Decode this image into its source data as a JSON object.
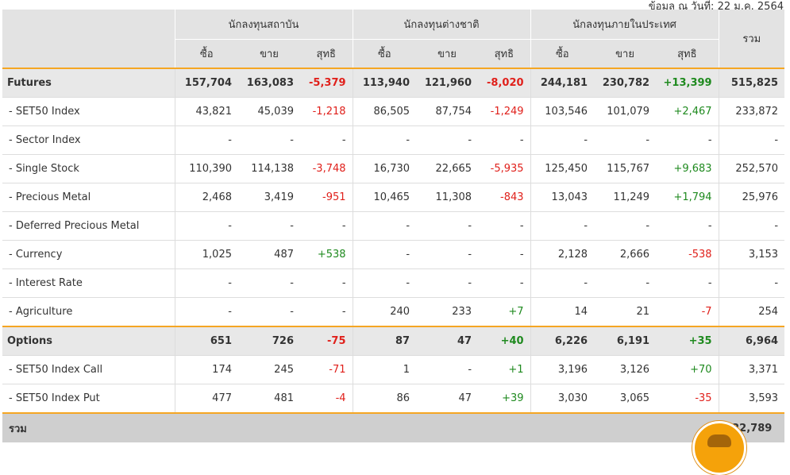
{
  "date_note": "ข้อมูล ณ วันที่: 22 ม.ค. 2564",
  "header": {
    "groups": [
      "นักลงทุนสถาบัน",
      "นักลงทุนต่างชาติ",
      "นักลงทุนภายในประเทศ"
    ],
    "total": "รวม",
    "sub": [
      "ซื้อ",
      "ขาย",
      "สุทธิ"
    ]
  },
  "rows": [
    {
      "type": "main",
      "name": "Futures",
      "v": [
        "157,704",
        "163,083",
        "-5,379",
        "113,940",
        "121,960",
        "-8,020",
        "244,181",
        "230,782",
        "+13,399"
      ],
      "total": "515,825"
    },
    {
      "type": "sub",
      "name": "- SET50 Index",
      "v": [
        "43,821",
        "45,039",
        "-1,218",
        "86,505",
        "87,754",
        "-1,249",
        "103,546",
        "101,079",
        "+2,467"
      ],
      "total": "233,872"
    },
    {
      "type": "sub",
      "name": "- Sector Index",
      "v": [
        "-",
        "-",
        "-",
        "-",
        "-",
        "-",
        "-",
        "-",
        "-"
      ],
      "total": "-"
    },
    {
      "type": "sub",
      "name": "- Single Stock",
      "v": [
        "110,390",
        "114,138",
        "-3,748",
        "16,730",
        "22,665",
        "-5,935",
        "125,450",
        "115,767",
        "+9,683"
      ],
      "total": "252,570"
    },
    {
      "type": "sub",
      "name": "- Precious Metal",
      "v": [
        "2,468",
        "3,419",
        "-951",
        "10,465",
        "11,308",
        "-843",
        "13,043",
        "11,249",
        "+1,794"
      ],
      "total": "25,976"
    },
    {
      "type": "sub",
      "name": "- Deferred Precious Metal",
      "v": [
        "-",
        "-",
        "-",
        "-",
        "-",
        "-",
        "-",
        "-",
        "-"
      ],
      "total": "-"
    },
    {
      "type": "sub",
      "name": "- Currency",
      "v": [
        "1,025",
        "487",
        "+538",
        "-",
        "-",
        "-",
        "2,128",
        "2,666",
        "-538"
      ],
      "total": "3,153"
    },
    {
      "type": "sub",
      "name": "- Interest Rate",
      "v": [
        "-",
        "-",
        "-",
        "-",
        "-",
        "-",
        "-",
        "-",
        "-"
      ],
      "total": "-"
    },
    {
      "type": "sub",
      "name": "- Agriculture",
      "v": [
        "-",
        "-",
        "-",
        "240",
        "233",
        "+7",
        "14",
        "21",
        "-7"
      ],
      "total": "254"
    },
    {
      "type": "main",
      "name": "Options",
      "v": [
        "651",
        "726",
        "-75",
        "87",
        "47",
        "+40",
        "6,226",
        "6,191",
        "+35"
      ],
      "total": "6,964"
    },
    {
      "type": "sub",
      "name": "- SET50 Index Call",
      "v": [
        "174",
        "245",
        "-71",
        "1",
        "-",
        "+1",
        "3,196",
        "3,126",
        "+70"
      ],
      "total": "3,371"
    },
    {
      "type": "sub",
      "name": "- SET50 Index Put",
      "v": [
        "477",
        "481",
        "-4",
        "86",
        "47",
        "+39",
        "3,030",
        "3,065",
        "-35"
      ],
      "total": "3,593"
    }
  ],
  "grand_total": {
    "label": "รวม",
    "value": "522,789"
  },
  "colors": {
    "negative": "#e0201b",
    "positive": "#1f8a1f",
    "accent": "#f5a623",
    "header_bg": "#e3e3e3"
  }
}
